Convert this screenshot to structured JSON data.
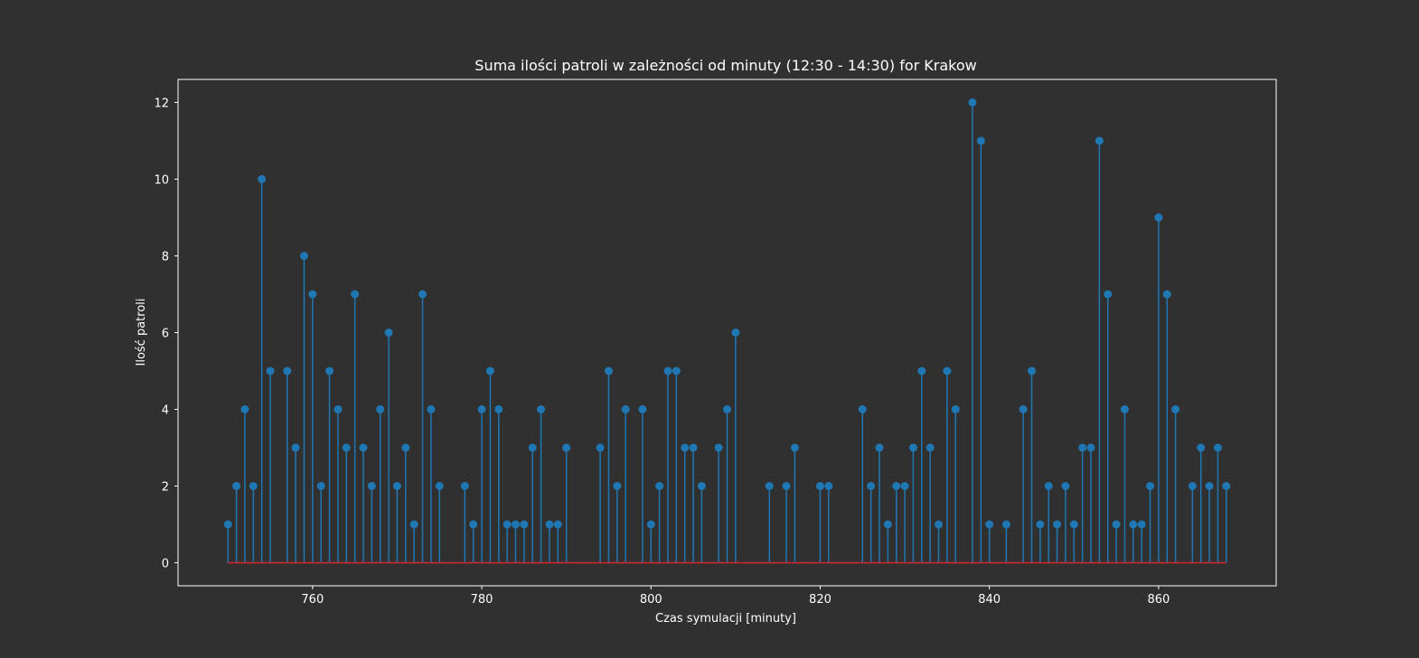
{
  "colors": {
    "background": "#303030",
    "axes": "#ffffff",
    "stem": "#1f77b4",
    "baseline": "#d62728",
    "text": "#ffffff"
  },
  "chart_data": {
    "type": "stem",
    "title": "Suma ilości patroli w zależności od minuty (12:30 - 14:30) for Krakow",
    "xlabel": "Czas symulacji [minuty]",
    "ylabel": "Ilość patroli",
    "xlim": [
      744.1,
      873.9
    ],
    "ylim": [
      -0.6,
      12.6
    ],
    "xticks": [
      760,
      780,
      800,
      820,
      840,
      860
    ],
    "yticks": [
      0,
      2,
      4,
      6,
      8,
      10,
      12
    ],
    "grid": false,
    "baseline": 0,
    "points": [
      [
        750,
        1
      ],
      [
        751,
        2
      ],
      [
        752,
        4
      ],
      [
        753,
        2
      ],
      [
        754,
        10
      ],
      [
        755,
        5
      ],
      [
        757,
        5
      ],
      [
        758,
        3
      ],
      [
        759,
        8
      ],
      [
        760,
        7
      ],
      [
        761,
        2
      ],
      [
        762,
        5
      ],
      [
        763,
        4
      ],
      [
        764,
        3
      ],
      [
        765,
        7
      ],
      [
        766,
        3
      ],
      [
        767,
        2
      ],
      [
        768,
        4
      ],
      [
        769,
        6
      ],
      [
        770,
        2
      ],
      [
        771,
        3
      ],
      [
        772,
        1
      ],
      [
        773,
        7
      ],
      [
        774,
        4
      ],
      [
        775,
        2
      ],
      [
        778,
        2
      ],
      [
        779,
        1
      ],
      [
        780,
        4
      ],
      [
        781,
        5
      ],
      [
        782,
        4
      ],
      [
        783,
        1
      ],
      [
        784,
        1
      ],
      [
        785,
        1
      ],
      [
        786,
        3
      ],
      [
        787,
        4
      ],
      [
        788,
        1
      ],
      [
        789,
        1
      ],
      [
        790,
        3
      ],
      [
        794,
        3
      ],
      [
        795,
        5
      ],
      [
        796,
        2
      ],
      [
        797,
        4
      ],
      [
        799,
        4
      ],
      [
        800,
        1
      ],
      [
        801,
        2
      ],
      [
        802,
        5
      ],
      [
        803,
        5
      ],
      [
        804,
        3
      ],
      [
        805,
        3
      ],
      [
        806,
        2
      ],
      [
        808,
        3
      ],
      [
        809,
        4
      ],
      [
        810,
        6
      ],
      [
        814,
        2
      ],
      [
        816,
        2
      ],
      [
        817,
        3
      ],
      [
        820,
        2
      ],
      [
        821,
        2
      ],
      [
        825,
        4
      ],
      [
        826,
        2
      ],
      [
        827,
        3
      ],
      [
        828,
        1
      ],
      [
        829,
        2
      ],
      [
        830,
        2
      ],
      [
        831,
        3
      ],
      [
        832,
        5
      ],
      [
        833,
        3
      ],
      [
        834,
        1
      ],
      [
        835,
        5
      ],
      [
        836,
        4
      ],
      [
        838,
        12
      ],
      [
        839,
        11
      ],
      [
        840,
        1
      ],
      [
        842,
        1
      ],
      [
        844,
        4
      ],
      [
        845,
        5
      ],
      [
        846,
        1
      ],
      [
        847,
        2
      ],
      [
        848,
        1
      ],
      [
        849,
        2
      ],
      [
        850,
        1
      ],
      [
        851,
        3
      ],
      [
        852,
        3
      ],
      [
        853,
        11
      ],
      [
        854,
        7
      ],
      [
        855,
        1
      ],
      [
        856,
        4
      ],
      [
        857,
        1
      ],
      [
        858,
        1
      ],
      [
        859,
        2
      ],
      [
        860,
        9
      ],
      [
        861,
        7
      ],
      [
        862,
        4
      ],
      [
        864,
        2
      ],
      [
        865,
        3
      ],
      [
        866,
        2
      ],
      [
        867,
        3
      ],
      [
        868,
        2
      ]
    ]
  }
}
